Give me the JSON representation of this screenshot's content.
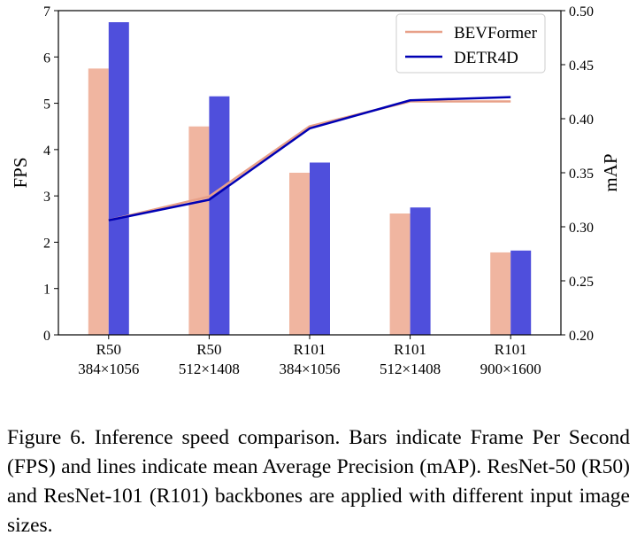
{
  "chart_data": {
    "type": "bar",
    "categories": [
      [
        "R50",
        "384×1056"
      ],
      [
        "R50",
        "512×1408"
      ],
      [
        "R101",
        "384×1056"
      ],
      [
        "R101",
        "512×1408"
      ],
      [
        "R101",
        "900×1600"
      ]
    ],
    "series": [
      {
        "name": "BEVFormer",
        "type": "bar",
        "axis": "FPS",
        "color": "#f0b5a0",
        "values": [
          5.75,
          4.5,
          3.5,
          2.62,
          1.78
        ]
      },
      {
        "name": "DETR4D",
        "type": "bar",
        "axis": "FPS",
        "color": "#4f4fdc",
        "values": [
          6.75,
          5.15,
          3.72,
          2.75,
          1.82
        ]
      }
    ],
    "lines": [
      {
        "name": "BEVFormer",
        "type": "line",
        "axis": "mAP",
        "color": "#e8a088",
        "values": [
          0.306,
          0.328,
          0.393,
          0.416,
          0.416
        ]
      },
      {
        "name": "DETR4D",
        "type": "line",
        "axis": "mAP",
        "color": "#0000b4",
        "values": [
          0.306,
          0.325,
          0.391,
          0.417,
          0.42
        ]
      }
    ],
    "ylabel": "FPS",
    "ylim": [
      0,
      7
    ],
    "yticks": [
      "0",
      "1",
      "2",
      "3",
      "4",
      "5",
      "6",
      "7"
    ],
    "y2label": "mAP",
    "y2lim": [
      0.2,
      0.5
    ],
    "y2ticks": [
      "0.20",
      "0.25",
      "0.30",
      "0.35",
      "0.40",
      "0.45",
      "0.50"
    ],
    "legend": {
      "position": "top-right",
      "entries": [
        "BEVFormer",
        "DETR4D"
      ]
    }
  },
  "caption": "Figure 6. Inference speed comparison. Bars indicate Frame Per Second (FPS) and lines indicate mean Average Precision (mAP). ResNet-50 (R50) and ResNet-101 (R101) backbones are applied with different input image sizes."
}
